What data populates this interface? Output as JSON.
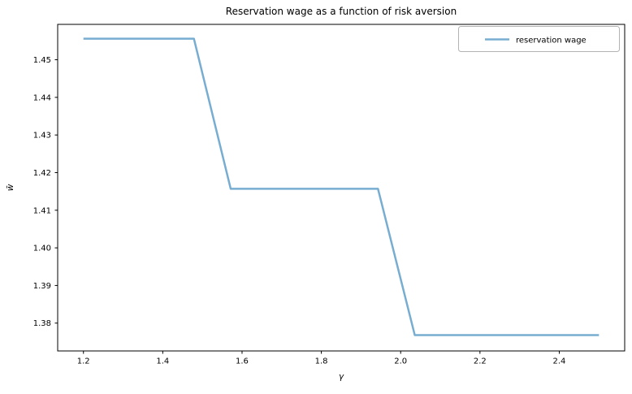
{
  "figure": {
    "title": "Reservation wage as a function of risk aversion",
    "xlabel": "γ",
    "ylabel": "w̄",
    "background_color": "#ffffff",
    "axes_frame_color": "#000000",
    "legend": {
      "label": "reservation wage",
      "line_color": "#78add2",
      "border_color": "#b3b3b3",
      "position": "upper right"
    }
  },
  "chart_data": {
    "type": "line",
    "title": "Reservation wage as a function of risk aversion",
    "xlabel": "γ",
    "ylabel": "w̄",
    "xlim": [
      1.135,
      2.565
    ],
    "ylim": [
      1.3726,
      1.4594
    ],
    "xticks": [
      1.2,
      1.4,
      1.6,
      1.8,
      2.0,
      2.2,
      2.4
    ],
    "xtick_labels": [
      "1.2",
      "1.4",
      "1.6",
      "1.8",
      "2.0",
      "2.2",
      "2.4"
    ],
    "yticks": [
      1.38,
      1.39,
      1.4,
      1.41,
      1.42,
      1.43,
      1.44,
      1.45
    ],
    "ytick_labels": [
      "1.38",
      "1.39",
      "1.40",
      "1.41",
      "1.42",
      "1.43",
      "1.44",
      "1.45"
    ],
    "grid": false,
    "legend_position": "upper right",
    "series": [
      {
        "name": "reservation wage",
        "color": "#78add2",
        "line_width": 2.5,
        "x": [
          1.2,
          1.2929,
          1.3857,
          1.4786,
          1.5714,
          1.6643,
          1.7571,
          1.85,
          1.9429,
          2.0357,
          2.1286,
          2.2214,
          2.3143,
          2.4071,
          2.5
        ],
        "y": [
          1.4556,
          1.4556,
          1.4556,
          1.4556,
          1.4157,
          1.4157,
          1.4157,
          1.4157,
          1.4157,
          1.3768,
          1.3768,
          1.3768,
          1.3768,
          1.3768,
          1.3768
        ]
      }
    ]
  }
}
